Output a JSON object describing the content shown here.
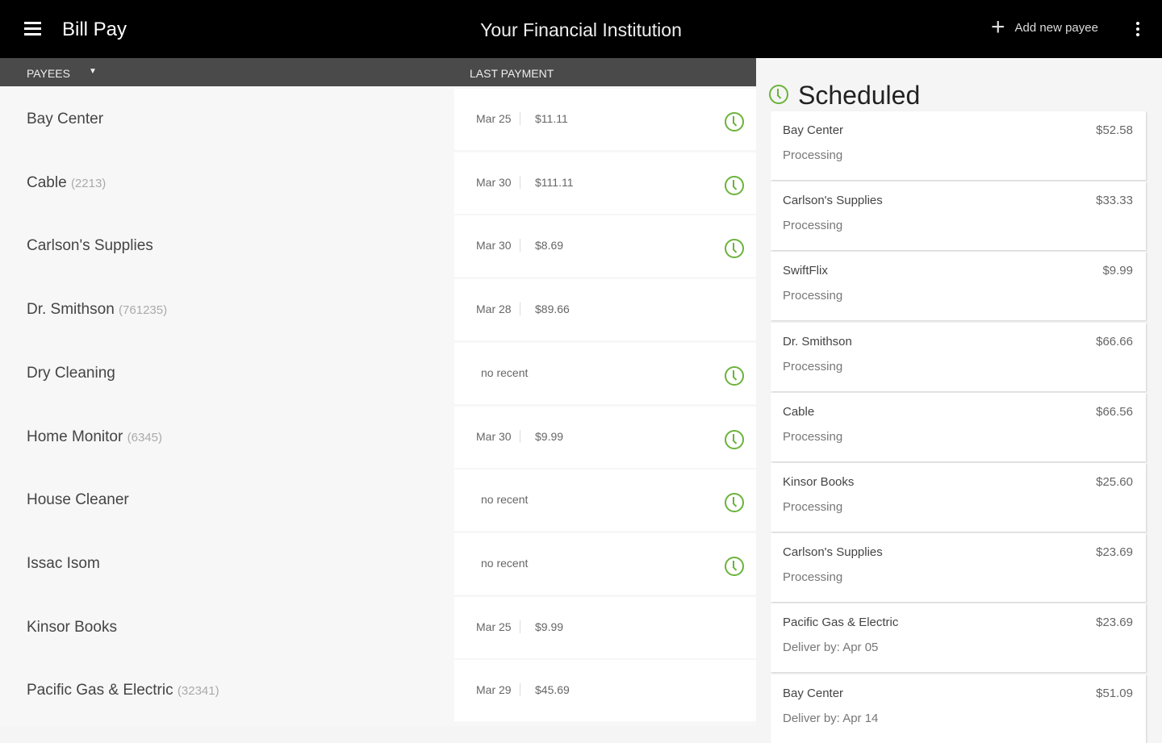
{
  "topbar": {
    "title": "Bill Pay",
    "institution": "Your Financial Institution",
    "add_label": "Add new payee"
  },
  "columns": {
    "payees": "PAYEES",
    "last_payment": "LAST PAYMENT"
  },
  "payees": [
    {
      "name": "Bay Center",
      "acct": "",
      "date": "Mar 25",
      "amount": "$11.11",
      "recent": "",
      "scheduled": true
    },
    {
      "name": "Cable",
      "acct": "(2213)",
      "date": "Mar 30",
      "amount": "$111.11",
      "recent": "",
      "scheduled": true
    },
    {
      "name": "Carlson's Supplies",
      "acct": "",
      "date": "Mar 30",
      "amount": "$8.69",
      "recent": "",
      "scheduled": true
    },
    {
      "name": "Dr. Smithson",
      "acct": "(761235)",
      "date": "Mar 28",
      "amount": "$89.66",
      "recent": "",
      "scheduled": false
    },
    {
      "name": "Dry Cleaning",
      "acct": "",
      "date": "",
      "amount": "",
      "recent": "no recent",
      "scheduled": true
    },
    {
      "name": "Home Monitor",
      "acct": "(6345)",
      "date": "Mar 30",
      "amount": "$9.99",
      "recent": "",
      "scheduled": true
    },
    {
      "name": "House Cleaner",
      "acct": "",
      "date": "",
      "amount": "",
      "recent": "no recent",
      "scheduled": true
    },
    {
      "name": "Issac Isom",
      "acct": "",
      "date": "",
      "amount": "",
      "recent": "no recent",
      "scheduled": true
    },
    {
      "name": "Kinsor Books",
      "acct": "",
      "date": "Mar 25",
      "amount": "$9.99",
      "recent": "",
      "scheduled": false
    },
    {
      "name": "Pacific Gas & Electric",
      "acct": "(32341)",
      "date": "Mar 29",
      "amount": "$45.69",
      "recent": "",
      "scheduled": false
    }
  ],
  "scheduled": {
    "title": "Scheduled",
    "items": [
      {
        "name": "Bay Center",
        "status": "Processing",
        "amount": "$52.58"
      },
      {
        "name": "Carlson's Supplies",
        "status": "Processing",
        "amount": "$33.33"
      },
      {
        "name": "SwiftFlix",
        "status": "Processing",
        "amount": "$9.99"
      },
      {
        "name": "Dr. Smithson",
        "status": "Processing",
        "amount": "$66.66"
      },
      {
        "name": "Cable",
        "status": "Processing",
        "amount": "$66.56"
      },
      {
        "name": "Kinsor Books",
        "status": "Processing",
        "amount": "$25.60"
      },
      {
        "name": "Carlson's Supplies",
        "status": "Processing",
        "amount": "$23.69"
      },
      {
        "name": "Pacific Gas & Electric",
        "status": "Deliver by: Apr 05",
        "amount": "$23.69"
      },
      {
        "name": "Bay Center",
        "status": "Deliver by: Apr 14",
        "amount": "$51.09"
      }
    ]
  },
  "colors": {
    "accent": "#6ab33b",
    "topbar": "#000000",
    "header": "#4a4a4a"
  }
}
